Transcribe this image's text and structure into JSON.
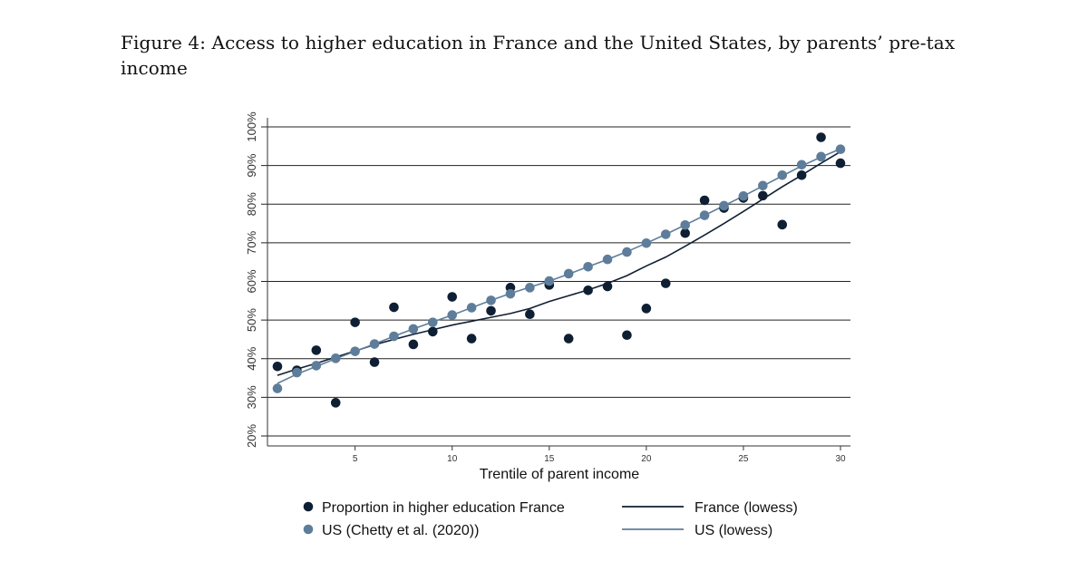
{
  "caption": "Figure 4:  Access to higher education in France and the United States, by parents’ pre-tax income",
  "chart_data": {
    "type": "scatter",
    "title": "",
    "xlabel": "Trentile of parent income",
    "ylabel": "",
    "xlim": [
      0.5,
      30.5
    ],
    "ylim": [
      20,
      100
    ],
    "xticks": [
      5,
      10,
      15,
      20,
      25,
      30
    ],
    "yticks": [
      20,
      30,
      40,
      50,
      60,
      70,
      80,
      90,
      100
    ],
    "ytick_labels": [
      "20%",
      "30%",
      "40%",
      "50%",
      "60%",
      "70%",
      "80%",
      "90%",
      "100%"
    ],
    "grid": "horizontal",
    "legend_placement": "bottom",
    "x": [
      1,
      2,
      3,
      4,
      5,
      6,
      7,
      8,
      9,
      10,
      11,
      12,
      13,
      14,
      15,
      16,
      17,
      18,
      19,
      20,
      21,
      22,
      23,
      24,
      25,
      26,
      27,
      28,
      29,
      30
    ],
    "series": [
      {
        "name": "Proportion in higher education France",
        "kind": "scatter",
        "color": "#0f1f33",
        "values": [
          38.0,
          37.0,
          42.2,
          28.6,
          49.4,
          39.1,
          53.3,
          43.7,
          47.0,
          56.0,
          45.2,
          52.4,
          58.4,
          51.5,
          59.1,
          45.2,
          57.7,
          58.7,
          46.1,
          53.0,
          59.5,
          72.5,
          81.0,
          79.0,
          81.6,
          82.2,
          74.7,
          87.5,
          97.3,
          90.6
        ]
      },
      {
        "name": "US (Chetty et al. (2020))",
        "kind": "scatter",
        "color": "#5e7d9a",
        "values": [
          32.3,
          36.4,
          38.2,
          40.1,
          41.9,
          43.8,
          45.8,
          47.7,
          49.4,
          51.3,
          53.2,
          55.1,
          56.8,
          58.4,
          60.1,
          62.0,
          63.8,
          65.7,
          67.6,
          69.9,
          72.2,
          74.6,
          77.1,
          79.6,
          82.1,
          84.8,
          87.5,
          90.2,
          92.3,
          94.2
        ]
      },
      {
        "name": "France (lowess)",
        "kind": "line",
        "color": "#0f1f33",
        "values": [
          35.7,
          37.3,
          38.8,
          40.4,
          42.0,
          43.6,
          45.0,
          46.3,
          47.5,
          48.7,
          49.7,
          50.7,
          51.7,
          53.0,
          54.8,
          56.3,
          57.8,
          59.5,
          61.5,
          64.0,
          66.3,
          69.1,
          72.0,
          75.0,
          78.1,
          81.3,
          84.5,
          87.5,
          90.6,
          93.6
        ]
      },
      {
        "name": "US (lowess)",
        "kind": "line",
        "color": "#5e7d9a",
        "values": [
          33.6,
          36.0,
          38.0,
          40.0,
          41.9,
          43.8,
          45.8,
          47.7,
          49.5,
          51.3,
          53.2,
          55.1,
          56.9,
          58.5,
          60.1,
          61.9,
          63.8,
          65.7,
          67.7,
          69.9,
          72.2,
          74.6,
          77.1,
          79.6,
          82.1,
          84.7,
          87.3,
          89.9,
          92.2,
          94.3
        ]
      }
    ]
  }
}
